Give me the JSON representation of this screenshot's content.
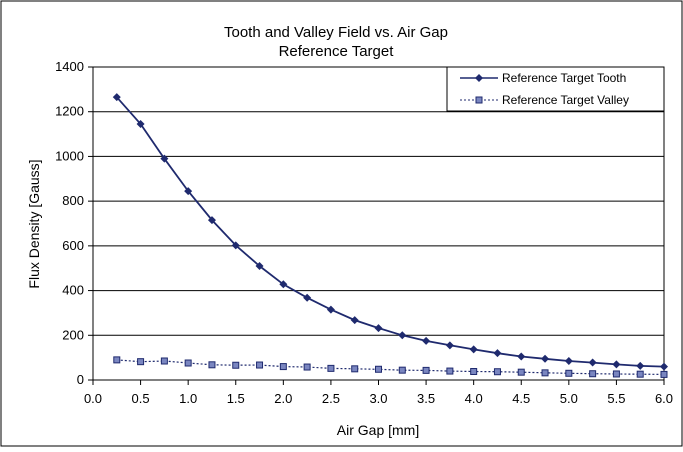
{
  "chart_data": {
    "type": "line",
    "title": "Tooth and Valley Field vs. Air Gap",
    "subtitle": "Reference Target",
    "xlabel": "Air Gap [mm]",
    "ylabel": "Flux Density [Gauss]",
    "xlim": [
      0,
      6
    ],
    "ylim": [
      0,
      1400
    ],
    "xticks": [
      "0.0",
      "0.5",
      "1.0",
      "1.5",
      "2.0",
      "2.5",
      "3.0",
      "3.5",
      "4.0",
      "4.5",
      "5.0",
      "5.5",
      "6.0"
    ],
    "yticks": [
      "0",
      "200",
      "400",
      "600",
      "800",
      "1000",
      "1200",
      "1400"
    ],
    "grid": "horizontal",
    "legend_position": "top-right",
    "x": [
      0.25,
      0.5,
      0.75,
      1.0,
      1.25,
      1.5,
      1.75,
      2.0,
      2.25,
      2.5,
      2.75,
      3.0,
      3.25,
      3.5,
      3.75,
      4.0,
      4.25,
      4.5,
      4.75,
      5.0,
      5.25,
      5.5,
      5.75,
      6.0
    ],
    "series": [
      {
        "name": "Reference Target Tooth",
        "color": "#1f2a6e",
        "marker": "diamond",
        "line": "solid",
        "values": [
          1265,
          1145,
          990,
          845,
          715,
          602,
          510,
          428,
          368,
          315,
          268,
          232,
          200,
          175,
          155,
          137,
          120,
          105,
          95,
          85,
          78,
          70,
          63,
          60
        ]
      },
      {
        "name": "Reference Target Valley",
        "color": "#1f2a6e",
        "marker": "square",
        "line": "dotted",
        "values": [
          90,
          82,
          85,
          76,
          68,
          66,
          67,
          60,
          58,
          52,
          50,
          48,
          44,
          43,
          40,
          38,
          37,
          35,
          32,
          30,
          28,
          27,
          26,
          25
        ]
      }
    ]
  }
}
